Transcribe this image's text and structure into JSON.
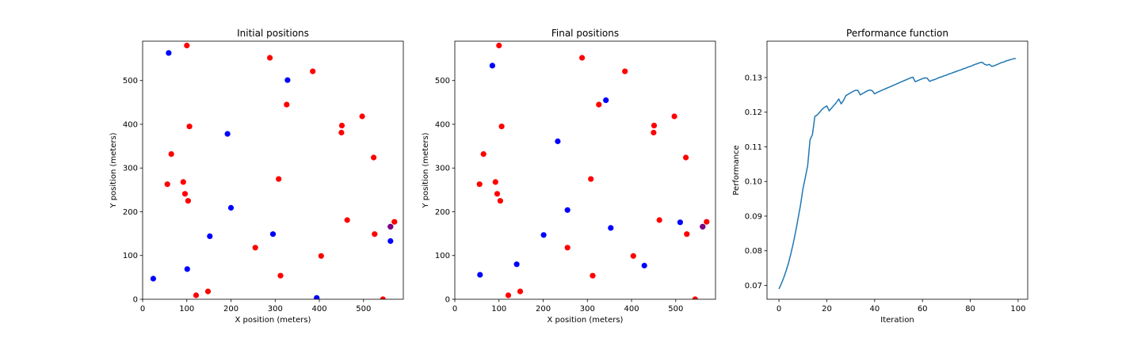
{
  "chart_data": [
    {
      "type": "scatter",
      "title": "Initial positions",
      "xlabel": "X position (meters)",
      "ylabel": "Y position (meters)",
      "xlim": [
        0,
        590
      ],
      "ylim": [
        0,
        590
      ],
      "xticks": [
        "0",
        "100",
        "200",
        "300",
        "400",
        "500"
      ],
      "yticks": [
        "0",
        "100",
        "200",
        "300",
        "400",
        "500"
      ],
      "series": [
        {
          "color": "#ff0000",
          "points": [
            [
              100,
              580
            ],
            [
              288,
              552
            ],
            [
              385,
              521
            ],
            [
              326,
              445
            ],
            [
              451,
              397
            ],
            [
              497,
              418
            ],
            [
              106,
              395
            ],
            [
              450,
              381
            ],
            [
              65,
              332
            ],
            [
              523,
              324
            ],
            [
              308,
              275
            ],
            [
              92,
              268
            ],
            [
              56,
              263
            ],
            [
              96,
              241
            ],
            [
              103,
              225
            ],
            [
              570,
              177
            ],
            [
              463,
              181
            ],
            [
              525,
              149
            ],
            [
              255,
              118
            ],
            [
              404,
              99
            ],
            [
              312,
              54
            ],
            [
              148,
              18
            ],
            [
              121,
              9
            ],
            [
              544,
              0
            ]
          ]
        },
        {
          "color": "#0000ff",
          "points": [
            [
              59,
              563
            ],
            [
              328,
              501
            ],
            [
              192,
              378
            ],
            [
              200,
              209
            ],
            [
              561,
              166
            ],
            [
              152,
              144
            ],
            [
              295,
              149
            ],
            [
              561,
              133
            ],
            [
              101,
              69
            ],
            [
              24,
              47
            ],
            [
              394,
              3
            ]
          ]
        },
        {
          "color": "#800080",
          "points": [
            [
              561,
              166
            ]
          ]
        }
      ]
    },
    {
      "type": "scatter",
      "title": "Final positions",
      "xlabel": "X position (meters)",
      "ylabel": "Y position (meters)",
      "xlim": [
        0,
        590
      ],
      "ylim": [
        0,
        590
      ],
      "xticks": [
        "0",
        "100",
        "200",
        "300",
        "400",
        "500"
      ],
      "yticks": [
        "0",
        "100",
        "200",
        "300",
        "400",
        "500"
      ],
      "series": [
        {
          "color": "#ff0000",
          "points": [
            [
              100,
              580
            ],
            [
              288,
              552
            ],
            [
              385,
              521
            ],
            [
              326,
              445
            ],
            [
              451,
              397
            ],
            [
              497,
              418
            ],
            [
              106,
              395
            ],
            [
              450,
              381
            ],
            [
              65,
              332
            ],
            [
              523,
              324
            ],
            [
              308,
              275
            ],
            [
              92,
              268
            ],
            [
              56,
              263
            ],
            [
              96,
              241
            ],
            [
              103,
              225
            ],
            [
              570,
              177
            ],
            [
              463,
              181
            ],
            [
              525,
              149
            ],
            [
              255,
              118
            ],
            [
              404,
              99
            ],
            [
              312,
              54
            ],
            [
              148,
              18
            ],
            [
              121,
              9
            ],
            [
              544,
              0
            ]
          ]
        },
        {
          "color": "#0000ff",
          "points": [
            [
              85,
              534
            ],
            [
              342,
              455
            ],
            [
              233,
              361
            ],
            [
              255,
              204
            ],
            [
              510,
              176
            ],
            [
              561,
              166
            ],
            [
              353,
              163
            ],
            [
              201,
              147
            ],
            [
              140,
              80
            ],
            [
              429,
              77
            ],
            [
              57,
              56
            ]
          ]
        },
        {
          "color": "#800080",
          "points": [
            [
              561,
              166
            ]
          ]
        }
      ]
    },
    {
      "type": "line",
      "title": "Performance function",
      "xlabel": "Iteration",
      "ylabel": "Performance",
      "xlim": [
        -5,
        104
      ],
      "ylim": [
        0.066,
        0.1405
      ],
      "xticks": [
        0,
        20,
        40,
        60,
        80,
        100
      ],
      "yticks": [
        "0.07",
        "0.08",
        "0.09",
        "0.10",
        "0.11",
        "0.12",
        "0.13"
      ],
      "series": [
        {
          "color": "#1f77b4",
          "x": [
            0,
            1,
            2,
            3,
            4,
            5,
            6,
            7,
            8,
            9,
            10,
            11,
            12,
            13,
            14,
            15,
            16,
            17,
            18,
            19,
            20,
            21,
            22,
            23,
            24,
            25,
            26,
            27,
            28,
            29,
            30,
            31,
            32,
            33,
            34,
            35,
            36,
            37,
            38,
            39,
            40,
            41,
            42,
            43,
            44,
            45,
            46,
            47,
            48,
            49,
            50,
            51,
            52,
            53,
            54,
            55,
            56,
            57,
            58,
            59,
            60,
            61,
            62,
            63,
            64,
            65,
            66,
            67,
            68,
            69,
            70,
            71,
            72,
            73,
            74,
            75,
            76,
            77,
            78,
            79,
            80,
            81,
            82,
            83,
            84,
            85,
            86,
            87,
            88,
            89,
            90,
            91,
            92,
            93,
            94,
            95,
            96,
            97,
            98,
            99
          ],
          "y": [
            0.069,
            0.0705,
            0.0722,
            0.0742,
            0.0765,
            0.0792,
            0.0822,
            0.0856,
            0.0893,
            0.0932,
            0.0978,
            0.1011,
            0.1045,
            0.112,
            0.1135,
            0.1188,
            0.1192,
            0.12,
            0.1208,
            0.1214,
            0.1218,
            0.1204,
            0.1212,
            0.122,
            0.1228,
            0.1238,
            0.1224,
            0.1234,
            0.1248,
            0.1252,
            0.1256,
            0.126,
            0.1263,
            0.1263,
            0.125,
            0.1254,
            0.1258,
            0.1262,
            0.1264,
            0.1262,
            0.1253,
            0.1257,
            0.126,
            0.1263,
            0.1266,
            0.1269,
            0.1272,
            0.1275,
            0.1278,
            0.1281,
            0.1284,
            0.1287,
            0.129,
            0.1293,
            0.1296,
            0.1299,
            0.1301,
            0.1288,
            0.1291,
            0.1294,
            0.1297,
            0.1299,
            0.1298,
            0.1289,
            0.1292,
            0.1294,
            0.1297,
            0.13,
            0.1302,
            0.1305,
            0.1307,
            0.131,
            0.1312,
            0.1315,
            0.1317,
            0.132,
            0.1322,
            0.1325,
            0.1327,
            0.133,
            0.1332,
            0.1335,
            0.1338,
            0.134,
            0.1343,
            0.1344,
            0.1338,
            0.1336,
            0.1338,
            0.1332,
            0.1334,
            0.1337,
            0.134,
            0.1343,
            0.1345,
            0.1348,
            0.135,
            0.1352,
            0.1354,
            0.1355
          ]
        }
      ]
    }
  ]
}
